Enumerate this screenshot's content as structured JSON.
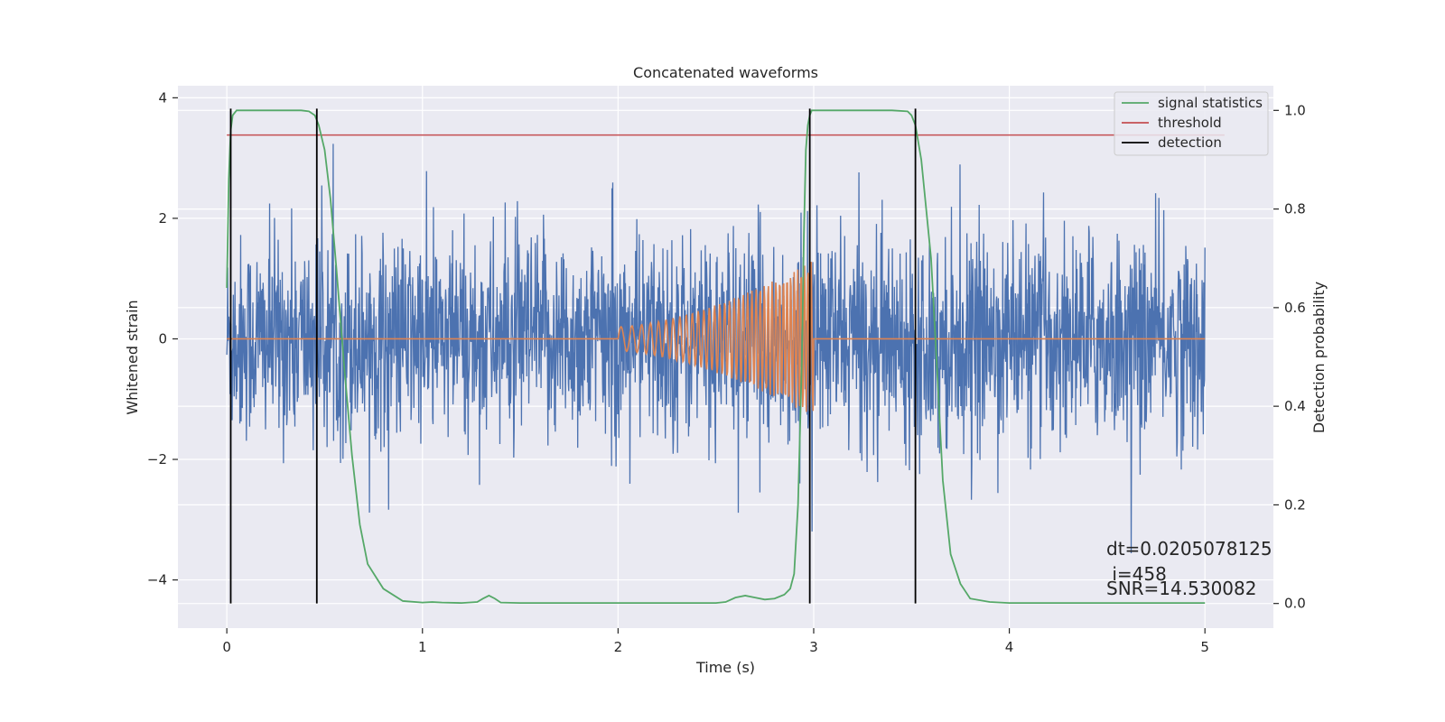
{
  "chart_data": {
    "type": "line",
    "title": "Concatenated waveforms",
    "xlabel": "Time (s)",
    "ylabel": "Whitened strain",
    "ylabel_right": "Detection probability",
    "xlim": [
      -0.25,
      5.35
    ],
    "ylim": [
      -4.8,
      4.2
    ],
    "ylim_right": [
      -0.05,
      1.05
    ],
    "x_ticks": [
      0,
      1,
      2,
      3,
      4,
      5
    ],
    "x_tick_labels": [
      "0",
      "1",
      "2",
      "3",
      "4",
      "5"
    ],
    "y_ticks": [
      -4,
      -2,
      0,
      2,
      4
    ],
    "y_tick_labels": [
      "−4",
      "−2",
      "0",
      "2",
      "4"
    ],
    "y_right_ticks": [
      0.0,
      0.2,
      0.4,
      0.6,
      0.8,
      1.0
    ],
    "y_right_tick_labels": [
      "0.0",
      "0.2",
      "0.4",
      "0.6",
      "0.8",
      "1.0"
    ],
    "grid": true,
    "legend_position": "top-right",
    "colors": {
      "background": "#eaeaf2",
      "noise": "#4c72b0",
      "chirp": "#dd8452",
      "signal_statistics": "#55a868",
      "threshold": "#c44e52",
      "detection": "#000000",
      "grid": "#ffffff"
    },
    "series": [
      {
        "name": "",
        "role": "whitened-strain",
        "x_range": [
          0,
          5
        ],
        "approx_std": 0.85
      },
      {
        "name": "",
        "role": "injected-chirp",
        "x_range": [
          2,
          3
        ],
        "start_amplitude": 0.2,
        "end_amplitude": 1.3
      },
      {
        "name": "signal statistics",
        "role": "probability",
        "x": [
          0.0,
          0.01,
          0.02,
          0.03,
          0.05,
          0.08,
          0.12,
          0.2,
          0.3,
          0.38,
          0.42,
          0.45,
          0.47,
          0.5,
          0.53,
          0.56,
          0.6,
          0.64,
          0.68,
          0.72,
          0.8,
          0.9,
          1.0,
          1.05,
          1.1,
          1.2,
          1.28,
          1.31,
          1.34,
          1.37,
          1.4,
          1.5,
          2.0,
          2.5,
          2.55,
          2.6,
          2.65,
          2.7,
          2.75,
          2.8,
          2.85,
          2.88,
          2.9,
          2.92,
          2.94,
          2.95,
          2.96,
          2.97,
          2.98,
          2.99,
          3.0,
          3.05,
          3.2,
          3.4,
          3.48,
          3.5,
          3.52,
          3.55,
          3.6,
          3.63,
          3.66,
          3.7,
          3.75,
          3.8,
          3.9,
          4.0,
          5.0
        ],
        "y": [
          0.64,
          0.86,
          0.96,
          0.99,
          1.0,
          1.0,
          1.0,
          1.0,
          1.0,
          1.0,
          0.998,
          0.99,
          0.97,
          0.92,
          0.82,
          0.68,
          0.48,
          0.3,
          0.16,
          0.08,
          0.03,
          0.005,
          0.002,
          0.003,
          0.002,
          0.001,
          0.003,
          0.01,
          0.016,
          0.01,
          0.002,
          0.001,
          0.001,
          0.001,
          0.003,
          0.012,
          0.016,
          0.012,
          0.008,
          0.01,
          0.018,
          0.03,
          0.06,
          0.2,
          0.5,
          0.75,
          0.92,
          0.97,
          0.99,
          1.0,
          1.0,
          1.0,
          1.0,
          1.0,
          0.998,
          0.99,
          0.97,
          0.9,
          0.7,
          0.48,
          0.25,
          0.1,
          0.04,
          0.01,
          0.003,
          0.001,
          0.001
        ]
      },
      {
        "name": "threshold",
        "role": "threshold",
        "x": [
          0,
          5.1
        ],
        "y": [
          0.95,
          0.95
        ]
      }
    ],
    "detections": [
      0.02,
      0.46,
      2.98,
      3.52
    ],
    "legend": [
      {
        "label": "signal statistics",
        "color": "#55a868"
      },
      {
        "label": "threshold",
        "color": "#c44e52"
      },
      {
        "label": "detection",
        "color": "#000000"
      }
    ],
    "annotations": {
      "dt": "dt=0.0205078125",
      "i": " i=458",
      "snr": "SNR=14.530082"
    }
  }
}
